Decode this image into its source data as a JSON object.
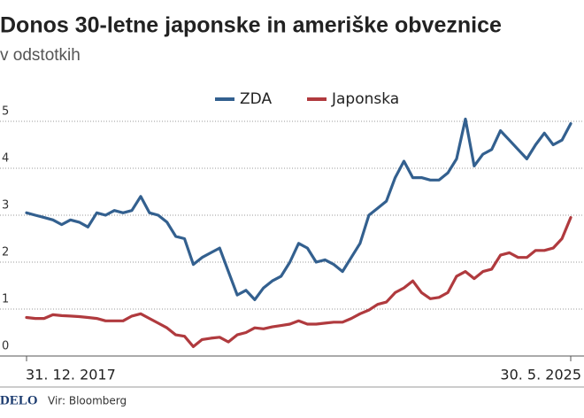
{
  "chart_data": {
    "type": "line",
    "title": "Donos 30-letne japonske in ameriške obveznice",
    "subtitle": "v odstotkih",
    "source": "Vir: Bloomberg",
    "brand": "DELO",
    "categories": [
      "31. 12. 2017",
      null,
      null,
      null,
      null,
      null,
      null,
      null,
      null,
      null,
      null,
      null,
      null,
      null,
      null,
      null,
      null,
      null,
      null,
      null,
      null,
      null,
      null,
      null,
      null,
      null,
      null,
      null,
      null,
      null,
      null,
      null,
      null,
      null,
      null,
      null,
      null,
      null,
      null,
      null,
      null,
      null,
      null,
      null,
      null,
      null,
      null,
      null,
      null,
      null,
      null,
      null,
      null,
      null,
      null,
      null,
      null,
      null,
      null,
      null,
      null,
      null,
      "30. 5. 2025"
    ],
    "series": [
      {
        "name": "ZDA",
        "color": "#33608f",
        "values": [
          3.05,
          3.0,
          2.95,
          2.9,
          2.8,
          2.9,
          2.85,
          2.75,
          3.05,
          3.0,
          3.1,
          3.05,
          3.1,
          3.4,
          3.05,
          3.0,
          2.85,
          2.55,
          2.5,
          1.95,
          2.1,
          2.2,
          2.3,
          1.8,
          1.3,
          1.4,
          1.2,
          1.45,
          1.6,
          1.7,
          2.0,
          2.4,
          2.3,
          2.0,
          2.05,
          1.95,
          1.8,
          2.1,
          2.4,
          3.0,
          3.15,
          3.3,
          3.8,
          4.15,
          3.8,
          3.8,
          3.75,
          3.75,
          3.9,
          4.2,
          5.05,
          4.05,
          4.3,
          4.4,
          4.8,
          4.6,
          4.4,
          4.2,
          4.5,
          4.75,
          4.5,
          4.6,
          4.95
        ]
      },
      {
        "name": "Japonska",
        "color": "#b03a3e",
        "values": [
          0.82,
          0.8,
          0.8,
          0.88,
          0.86,
          0.85,
          0.84,
          0.82,
          0.8,
          0.75,
          0.75,
          0.75,
          0.85,
          0.9,
          0.8,
          0.7,
          0.6,
          0.45,
          0.42,
          0.2,
          0.35,
          0.38,
          0.4,
          0.3,
          0.45,
          0.5,
          0.6,
          0.58,
          0.62,
          0.65,
          0.68,
          0.75,
          0.68,
          0.68,
          0.7,
          0.72,
          0.72,
          0.8,
          0.9,
          0.98,
          1.1,
          1.15,
          1.35,
          1.45,
          1.6,
          1.35,
          1.22,
          1.25,
          1.35,
          1.7,
          1.8,
          1.65,
          1.8,
          1.85,
          2.15,
          2.2,
          2.1,
          2.1,
          2.25,
          2.25,
          2.3,
          2.5,
          2.95
        ]
      }
    ],
    "ylim": [
      0,
      5
    ],
    "yticks": [
      0,
      1,
      2,
      3,
      4,
      5
    ],
    "grid": true
  }
}
